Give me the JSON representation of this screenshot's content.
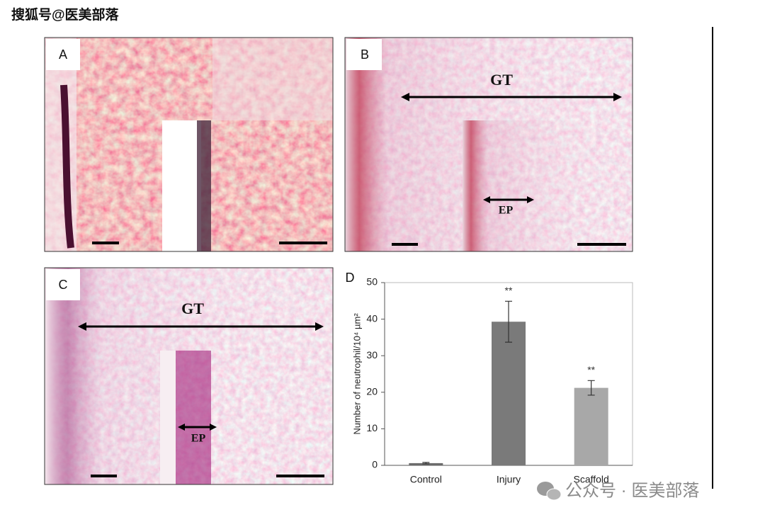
{
  "watermark_top": "搜狐号@医美部落",
  "watermark_bottom": "公众号 · 医美部落",
  "panels": {
    "A": {
      "label": "A"
    },
    "B": {
      "label": "B",
      "annotations": [
        "GT",
        "EP"
      ]
    },
    "C": {
      "label": "C",
      "annotations": [
        "GT",
        "EP"
      ]
    },
    "D": {
      "label": "D"
    }
  },
  "chart_data": {
    "type": "bar",
    "y_label": "Number of neutrophil/10⁴ µm²",
    "categories": [
      "Control",
      "Injury",
      "Scaffold"
    ],
    "values": [
      0.6,
      39.3,
      21.2
    ],
    "errors": [
      0.2,
      5.6,
      2.0
    ],
    "colors": [
      "#6b6b6b",
      "#7a7a7a",
      "#a8a8a8"
    ],
    "significance": {
      "Injury": "**",
      "Scaffold": "**"
    },
    "ylim": [
      0,
      50
    ],
    "yticks": [
      0,
      10,
      20,
      30,
      40,
      50
    ],
    "grid": false
  }
}
